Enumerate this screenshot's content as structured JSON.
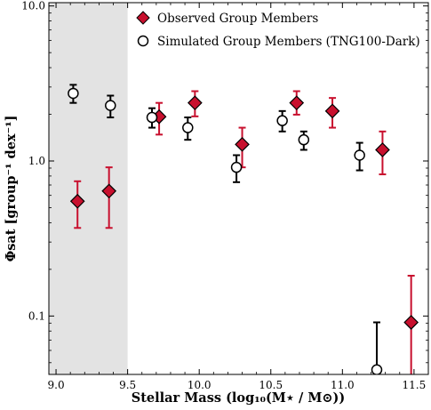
{
  "chart_data": {
    "type": "scatter",
    "xlabel": "Stellar Mass (log₁₀(M⋆ / M⊙))",
    "ylabel": "Φsat [group⁻¹ dex⁻¹]",
    "xlim": [
      8.95,
      11.6
    ],
    "ylim": [
      0.042,
      10.5
    ],
    "yscale": "log",
    "grid": false,
    "legend_position": "top-right",
    "shaded_region": [
      8.95,
      9.5
    ],
    "xticks": [
      9.0,
      9.5,
      10.0,
      10.5,
      11.0,
      11.5
    ],
    "xtick_labels": [
      "9.0",
      "9.5",
      "10.0",
      "10.5",
      "11.0",
      "11.5"
    ],
    "yticks": [
      0.1,
      1.0,
      10.0
    ],
    "ytick_labels": [
      "0.1",
      "1.0",
      "10.0"
    ],
    "series": [
      {
        "name": "Observed Group Members",
        "marker": "diamond",
        "color": "#c8102e",
        "errcolor": "#c8102e",
        "points": [
          {
            "x": 9.15,
            "y": 0.55,
            "lo": 0.37,
            "hi": 0.74
          },
          {
            "x": 9.37,
            "y": 0.64,
            "lo": 0.37,
            "hi": 0.91
          },
          {
            "x": 9.72,
            "y": 1.93,
            "lo": 1.48,
            "hi": 2.37
          },
          {
            "x": 9.97,
            "y": 2.37,
            "lo": 1.94,
            "hi": 2.82
          },
          {
            "x": 10.3,
            "y": 1.28,
            "lo": 0.91,
            "hi": 1.64
          },
          {
            "x": 10.68,
            "y": 2.37,
            "lo": 1.99,
            "hi": 2.82
          },
          {
            "x": 10.93,
            "y": 2.1,
            "lo": 1.64,
            "hi": 2.55
          },
          {
            "x": 11.28,
            "y": 1.18,
            "lo": 0.82,
            "hi": 1.55
          },
          {
            "x": 11.48,
            "y": 0.091,
            "lo": 0.033,
            "hi": 0.182
          }
        ]
      },
      {
        "name": "Simulated Group Members (TNG100-Dark)",
        "marker": "circle",
        "color": "#000000",
        "errcolor": "#000000",
        "points": [
          {
            "x": 9.12,
            "y": 2.73,
            "lo": 2.37,
            "hi": 3.1
          },
          {
            "x": 9.38,
            "y": 2.28,
            "lo": 1.91,
            "hi": 2.64
          },
          {
            "x": 9.67,
            "y": 1.91,
            "lo": 1.64,
            "hi": 2.19
          },
          {
            "x": 9.92,
            "y": 1.64,
            "lo": 1.37,
            "hi": 1.91
          },
          {
            "x": 10.26,
            "y": 0.91,
            "lo": 0.73,
            "hi": 1.09
          },
          {
            "x": 10.58,
            "y": 1.82,
            "lo": 1.55,
            "hi": 2.1
          },
          {
            "x": 10.73,
            "y": 1.37,
            "lo": 1.18,
            "hi": 1.55
          },
          {
            "x": 11.12,
            "y": 1.09,
            "lo": 0.87,
            "hi": 1.31
          },
          {
            "x": 11.24,
            "y": 0.045,
            "lo": 0.03,
            "hi": 0.091
          }
        ]
      }
    ]
  }
}
